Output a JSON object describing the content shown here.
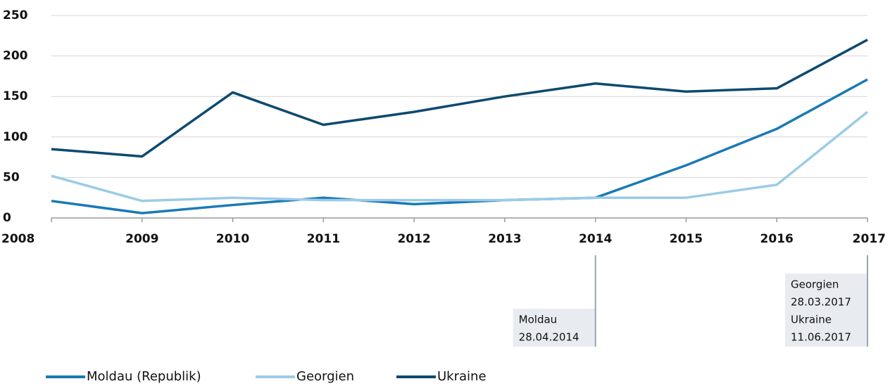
{
  "chart_data": {
    "type": "line",
    "x": [
      2008,
      2009,
      2010,
      2011,
      2012,
      2013,
      2014,
      2015,
      2016,
      2017
    ],
    "xlim": [
      2008,
      2017
    ],
    "xticks": [
      2008,
      2009,
      2010,
      2011,
      2012,
      2013,
      2014,
      2015,
      2016,
      2017
    ],
    "ylim": [
      0,
      250
    ],
    "yticks": [
      0,
      50,
      100,
      150,
      200,
      250
    ],
    "grid": true,
    "legend": "bottom",
    "series": [
      {
        "name": "Moldau (Republik)",
        "color": "#1a7ab5",
        "values": [
          21,
          6,
          16,
          25,
          17,
          22,
          25,
          65,
          110,
          171
        ]
      },
      {
        "name": "Georgien",
        "color": "#9ccbe6",
        "values": [
          52,
          21,
          25,
          22,
          22,
          22,
          25,
          25,
          41,
          131
        ]
      },
      {
        "name": "Ukraine",
        "color": "#0d4a70",
        "values": [
          85,
          76,
          155,
          115,
          131,
          150,
          166,
          156,
          160,
          220
        ]
      }
    ],
    "annotations": [
      {
        "x": 2014,
        "text": [
          "Moldau",
          "28.04.2014"
        ]
      },
      {
        "x": 2017,
        "text": [
          "Georgien",
          "28.03.2017",
          "Ukraine",
          "11.06.2017"
        ]
      }
    ]
  }
}
